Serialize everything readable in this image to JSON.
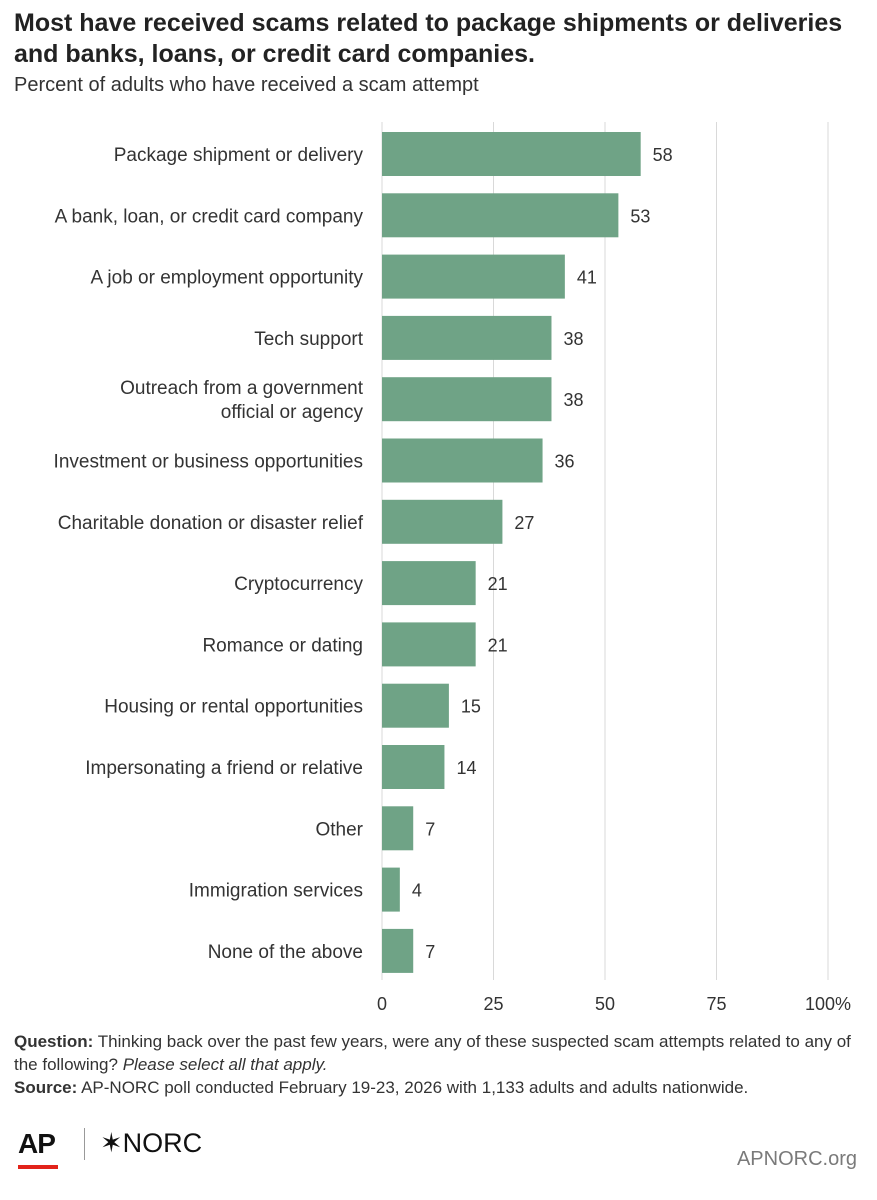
{
  "title": "Most have received scams related to package shipments or deliveries and banks, loans, or credit card companies.",
  "subtitle": "Percent of adults who have received a scam attempt",
  "chart_data": {
    "type": "bar",
    "orientation": "horizontal",
    "categories": [
      [
        "Package shipment or delivery"
      ],
      [
        "A bank, loan, or credit card company"
      ],
      [
        "A job or employment opportunity"
      ],
      [
        "Tech support"
      ],
      [
        "Outreach from a government",
        "official or agency"
      ],
      [
        "Investment or business opportunities"
      ],
      [
        "Charitable donation or disaster relief"
      ],
      [
        "Cryptocurrency"
      ],
      [
        "Romance or dating"
      ],
      [
        "Housing or rental opportunities"
      ],
      [
        "Impersonating a friend or relative"
      ],
      [
        "Other"
      ],
      [
        "Immigration services"
      ],
      [
        "None of the above"
      ]
    ],
    "values": [
      58,
      53,
      41,
      38,
      38,
      36,
      27,
      21,
      21,
      15,
      14,
      7,
      4,
      7
    ],
    "xlim": [
      0,
      100
    ],
    "xticks": [
      "0",
      "25",
      "50",
      "75",
      "100%"
    ],
    "grid": true,
    "bar_color": "#6fa386"
  },
  "footnote": {
    "question_label": "Question:",
    "question_text": "Thinking back over the past few years, were any of these suspected scam attempts related to any of the following?",
    "question_italic": "Please select all that apply.",
    "source_label": "Source:",
    "source_text": "AP-NORC poll conducted February 19-23, 2026 with 1,133 adults and adults nationwide."
  },
  "logos": {
    "ap": "AP",
    "norc_mark": "✶",
    "norc": "NORC"
  },
  "site": "APNORC.org"
}
